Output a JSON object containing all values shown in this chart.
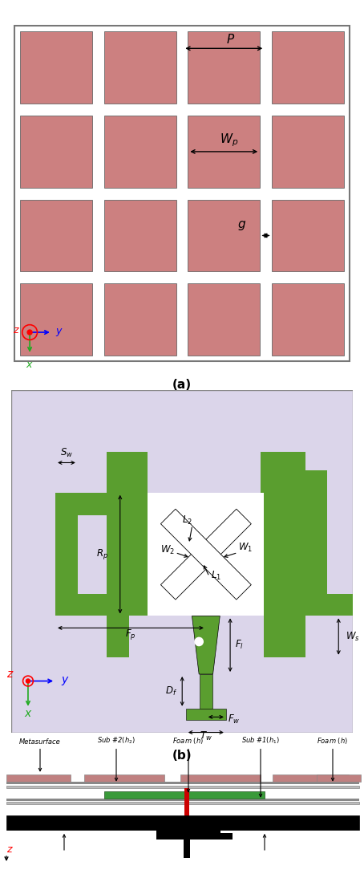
{
  "fig_width": 4.54,
  "fig_height": 10.84,
  "panel_a": {
    "bg_color": "#ffffff",
    "patch_color": "#cc8080",
    "patch_edge": "#555555",
    "border_color": "#888888",
    "label_a": "(a)"
  },
  "panel_b": {
    "bg_color": "#dbd5ea",
    "green_color": "#5a9e2f",
    "white_color": "#ffffff",
    "border_color": "#888888",
    "label_b": "(b)"
  },
  "panel_c": {
    "bg_color": "#ffffff",
    "pink_color": "#c08080",
    "green_color": "#3a9a3a",
    "red_color": "#cc0000",
    "black_color": "#111111",
    "gray_color": "#aaaaaa",
    "light_gray": "#cccccc"
  }
}
